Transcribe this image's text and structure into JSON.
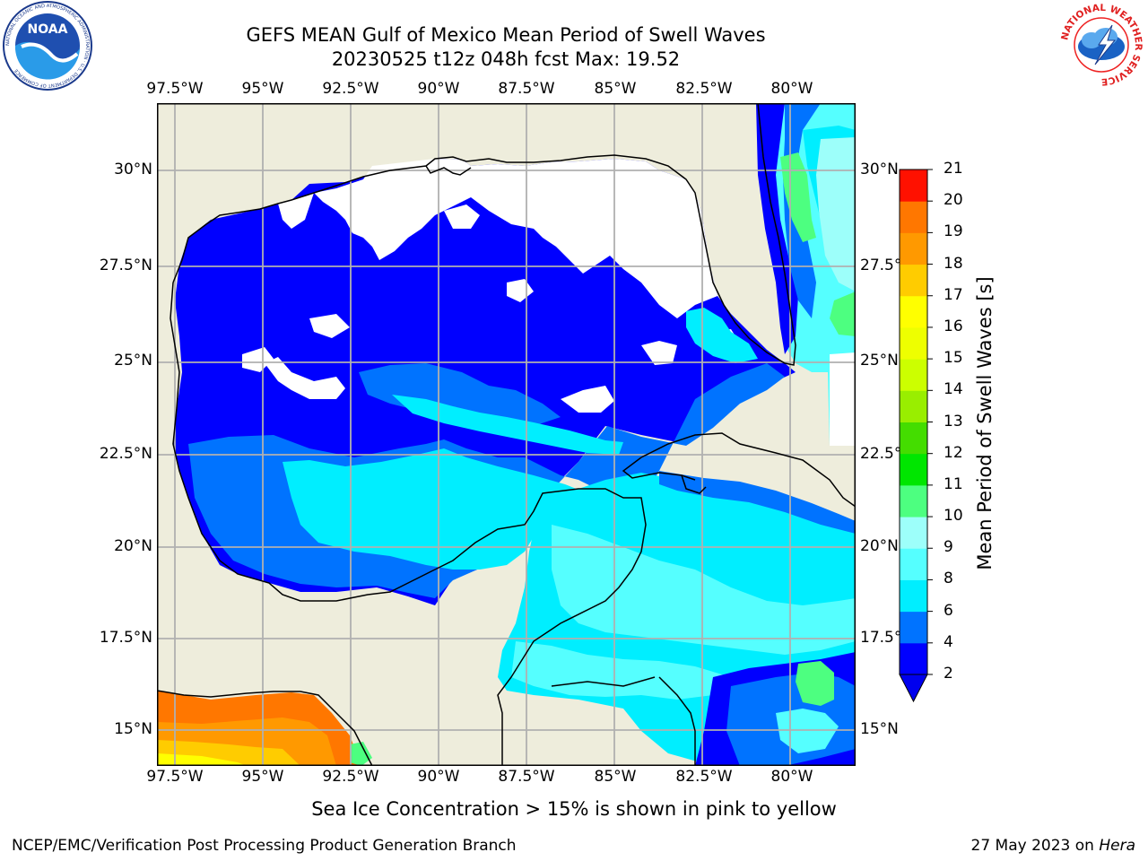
{
  "header": {
    "title_line1": "GEFS MEAN Gulf of Mexico Mean Period of Swell Waves",
    "title_line2": "20230525 t12z 048h fcst   Max: 19.52"
  },
  "logos": {
    "left": {
      "name": "NOAA",
      "text": "NOAA",
      "ring_text": "NATIONAL OCEANIC AND ATMOSPHERIC ADMINISTRATION · U.S. DEPARTMENT OF COMMERCE"
    },
    "right": {
      "name": "National Weather Service",
      "ring_text": "NATIONAL WEATHER SERVICE"
    }
  },
  "map": {
    "lon_labels": [
      "97.5°W",
      "95°W",
      "92.5°W",
      "90°W",
      "87.5°W",
      "85°W",
      "82.5°W",
      "80°W"
    ],
    "lat_labels_left": [
      "30°N",
      "27.5°N",
      "25°N",
      "22.5°N",
      "20°N",
      "17.5°N",
      "15°N"
    ],
    "lat_labels_right": [
      "30°N",
      "27.5°",
      "25°N",
      "22.5°",
      "20°N",
      "17.5°",
      "15°N"
    ],
    "colors": {
      "land": "#eeeddc",
      "no_data": "#ffffff",
      "gridline": "#b0b0b0",
      "coastline": "#000000"
    }
  },
  "colorbar": {
    "label": "Mean Period of Swell Waves [s]",
    "ticks": [
      "2",
      "4",
      "6",
      "8",
      "9",
      "10",
      "11",
      "12",
      "13",
      "14",
      "15",
      "16",
      "17",
      "18",
      "19",
      "20",
      "21"
    ],
    "colors": [
      "#0000ff",
      "#0073ff",
      "#00eeff",
      "#55ffff",
      "#9dfffa",
      "#4dff80",
      "#00e600",
      "#44dd00",
      "#99ee00",
      "#ccff00",
      "#eeff00",
      "#ffff00",
      "#ffcc00",
      "#ff9900",
      "#ff7700",
      "#ff4400",
      "#ff1100"
    ],
    "extend_color": "#0000ee"
  },
  "footer": {
    "note": "Sea Ice Concentration > 15% is shown in pink to yellow",
    "credit": "NCEP/EMC/Verification Post Processing Product Generation Branch",
    "date": "27 May 2023 on",
    "host": "Hera"
  }
}
